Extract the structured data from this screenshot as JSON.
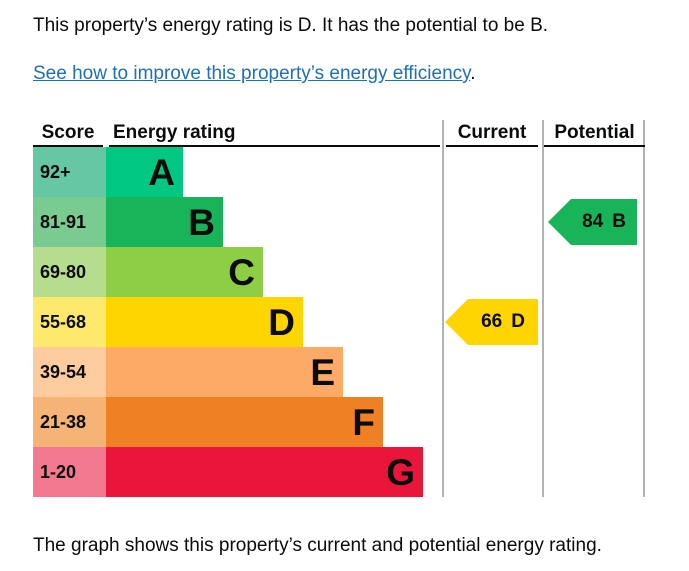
{
  "intro": "This property’s energy rating is D. It has the potential to be B.",
  "link": {
    "text": "See how to improve this property’s energy efficiency",
    "suffix": ".",
    "color": "#1d70b8"
  },
  "caption": "The graph shows this property’s current and potential energy rating.",
  "table": {
    "headers": {
      "score": "Score",
      "rating": "Energy rating",
      "current": "Current",
      "potential": "Potential"
    },
    "grid_color": "#b1b4b6",
    "header_underline_color": "#0b0c0c"
  },
  "bands": [
    {
      "range": "92+",
      "letter": "A",
      "bar_color": "#00c781",
      "score_color": "#66c7a4"
    },
    {
      "range": "81-91",
      "letter": "B",
      "bar_color": "#19b459",
      "score_color": "#79cb92"
    },
    {
      "range": "69-80",
      "letter": "C",
      "bar_color": "#8dce46",
      "score_color": "#b6dc8d"
    },
    {
      "range": "55-68",
      "letter": "D",
      "bar_color": "#ffd500",
      "score_color": "#ffe96d"
    },
    {
      "range": "39-54",
      "letter": "E",
      "bar_color": "#fcaa65",
      "score_color": "#fdcc9e"
    },
    {
      "range": "21-38",
      "letter": "F",
      "bar_color": "#ef8023",
      "score_color": "#f5b376"
    },
    {
      "range": "1-20",
      "letter": "G",
      "bar_color": "#e9153b",
      "score_color": "#f2798f"
    }
  ],
  "current": {
    "value": "66",
    "band": "D",
    "color": "#ffd500"
  },
  "potential": {
    "value": "84",
    "band": "B",
    "color": "#19b459"
  },
  "chart_data": {
    "type": "bar",
    "categories": [
      "A",
      "B",
      "C",
      "D",
      "E",
      "F",
      "G"
    ],
    "score_ranges": [
      "92+",
      "81-91",
      "69-80",
      "55-68",
      "39-54",
      "21-38",
      "1-20"
    ],
    "band_colors": [
      "#00c781",
      "#19b459",
      "#8dce46",
      "#ffd500",
      "#fcaa65",
      "#ef8023",
      "#e9153b"
    ],
    "columns": [
      "Score",
      "Energy rating",
      "Current",
      "Potential"
    ],
    "series": [
      {
        "name": "Current",
        "value": 66,
        "band": "D"
      },
      {
        "name": "Potential",
        "value": 84,
        "band": "B"
      }
    ],
    "legend_position": "none",
    "grid": false
  }
}
